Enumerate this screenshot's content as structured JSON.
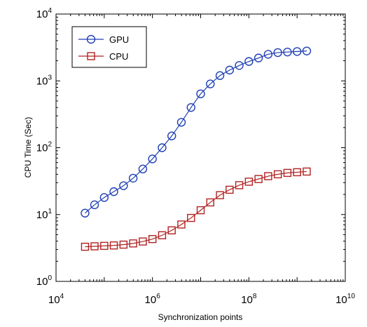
{
  "chart_data": {
    "type": "line",
    "xlabel": "Synchronization points",
    "ylabel": "CPU Time (Sec)",
    "xscale": "log",
    "yscale": "log",
    "xlim": [
      10000,
      10000000000
    ],
    "ylim": [
      1,
      10000
    ],
    "x_ticks": [
      {
        "base": "10",
        "exp": "4"
      },
      {
        "base": "10",
        "exp": "6"
      },
      {
        "base": "10",
        "exp": "8"
      },
      {
        "base": "10",
        "exp": "10"
      }
    ],
    "y_ticks": [
      {
        "base": "10",
        "exp": "0"
      },
      {
        "base": "10",
        "exp": "1"
      },
      {
        "base": "10",
        "exp": "2"
      },
      {
        "base": "10",
        "exp": "3"
      },
      {
        "base": "10",
        "exp": "4"
      }
    ],
    "grid": false,
    "legend": "top-left",
    "x": [
      40000,
      63000,
      100000,
      158000,
      251000,
      398000,
      631000,
      1000000,
      1585000,
      2512000,
      3981000,
      6310000,
      10000000,
      15850000,
      25120000,
      39810000,
      63100000,
      100000000,
      158500000,
      251200000,
      398100000,
      631000000,
      1000000000,
      1585000000
    ],
    "series": [
      {
        "name": "GPU",
        "color": "#1f3fb3",
        "marker": "circle",
        "values": [
          10.5,
          14,
          18,
          22,
          27,
          35,
          48,
          68,
          100,
          150,
          240,
          400,
          640,
          900,
          1200,
          1450,
          1700,
          1950,
          2200,
          2500,
          2650,
          2700,
          2750,
          2800
        ]
      },
      {
        "name": "CPU",
        "color": "#b22222",
        "marker": "square",
        "values": [
          3.3,
          3.35,
          3.4,
          3.45,
          3.55,
          3.7,
          3.95,
          4.3,
          4.9,
          5.8,
          7.1,
          8.9,
          11.6,
          15.2,
          19.5,
          23.5,
          27.5,
          31,
          34,
          37.5,
          40,
          42,
          43,
          44
        ]
      }
    ]
  }
}
